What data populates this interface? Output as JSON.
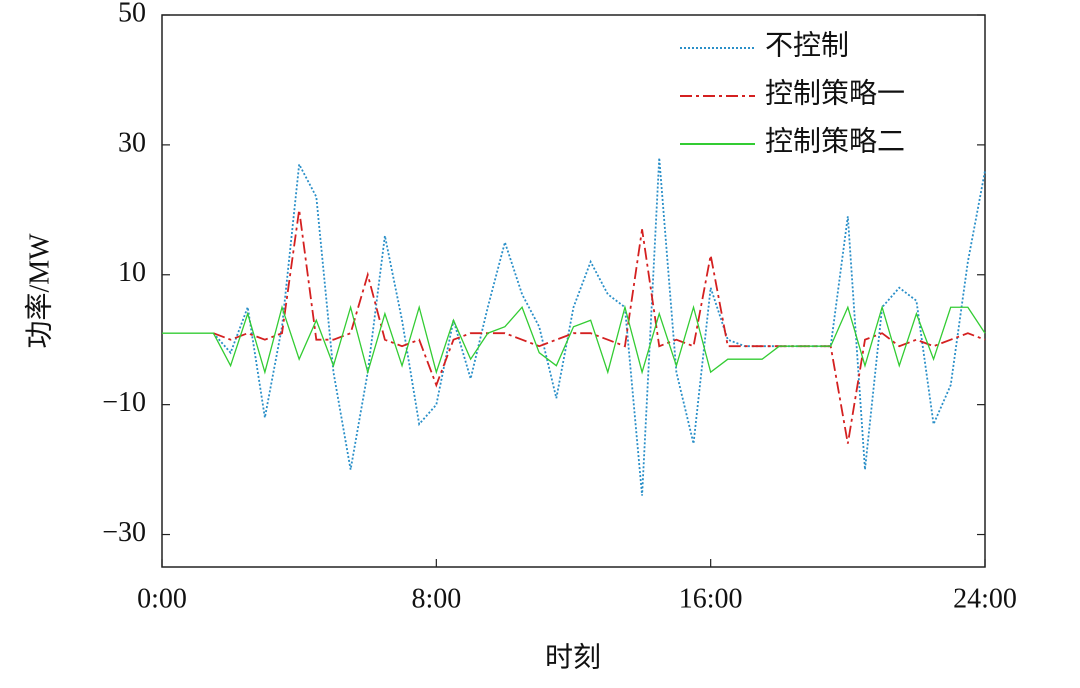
{
  "chart_data": {
    "type": "line",
    "xlabel": "时刻",
    "ylabel": "功率/MW",
    "x": [
      0,
      0.5,
      1,
      1.5,
      2,
      2.5,
      3,
      3.5,
      4,
      4.5,
      5,
      5.5,
      6,
      6.5,
      7,
      7.5,
      8,
      8.5,
      9,
      9.5,
      10,
      10.5,
      11,
      11.5,
      12,
      12.5,
      13,
      13.5,
      14,
      14.5,
      15,
      15.5,
      16,
      16.5,
      17,
      17.5,
      18,
      18.5,
      19,
      19.5,
      20,
      20.5,
      21,
      21.5,
      22,
      22.5,
      23,
      23.5,
      24
    ],
    "xlim": [
      0,
      24
    ],
    "xticks": [
      {
        "value": 0,
        "label": "0:00"
      },
      {
        "value": 8,
        "label": "8:00"
      },
      {
        "value": 16,
        "label": "16:00"
      },
      {
        "value": 24,
        "label": "24:00"
      }
    ],
    "ylim": [
      -35,
      50
    ],
    "yticks": [
      {
        "value": -30,
        "label": "−30"
      },
      {
        "value": -10,
        "label": "−10"
      },
      10,
      30,
      50
    ],
    "legend": "upper right",
    "series": [
      {
        "name": "不控制",
        "color": "#2a8fc8",
        "style": "dotted",
        "values": [
          null,
          null,
          null,
          1,
          -2,
          5,
          -12,
          2,
          27,
          22,
          -5,
          -20,
          -5,
          16,
          3,
          -13,
          -10,
          3,
          -6,
          5,
          15,
          7,
          2,
          -9,
          5,
          12,
          7,
          5,
          -24,
          28,
          -5,
          -16,
          8,
          0,
          -1,
          -1,
          -1,
          -1,
          -1,
          -1,
          19,
          -20,
          5,
          8,
          6,
          -13,
          -7,
          12,
          26
        ]
      },
      {
        "name": "控制策略一",
        "color": "#d42020",
        "style": "dashdot",
        "values": [
          null,
          null,
          null,
          1,
          0,
          1,
          0,
          1,
          20,
          0,
          0,
          1,
          10,
          0,
          -1,
          0,
          -7,
          0,
          1,
          1,
          1,
          0,
          -1,
          0,
          1,
          1,
          0,
          -1,
          17,
          -1,
          0,
          -1,
          13,
          -1,
          -1,
          -1,
          -1,
          -1,
          -1,
          -1,
          -16,
          0,
          1,
          -1,
          0,
          -1,
          0,
          1,
          0
        ]
      },
      {
        "name": "控制策略二",
        "color": "#33cc33",
        "style": "solid",
        "values": [
          1,
          1,
          1,
          1,
          -4,
          4,
          -5,
          5,
          -3,
          3,
          -4,
          5,
          -5,
          4,
          -4,
          5,
          -5,
          3,
          -3,
          1,
          2,
          5,
          -2,
          -4,
          2,
          3,
          -5,
          5,
          -5,
          4,
          -4,
          5,
          -5,
          -3,
          -3,
          -3,
          -1,
          -1,
          -1,
          -1,
          5,
          -4,
          5,
          -4,
          4,
          -3,
          5,
          5,
          1
        ]
      }
    ]
  }
}
